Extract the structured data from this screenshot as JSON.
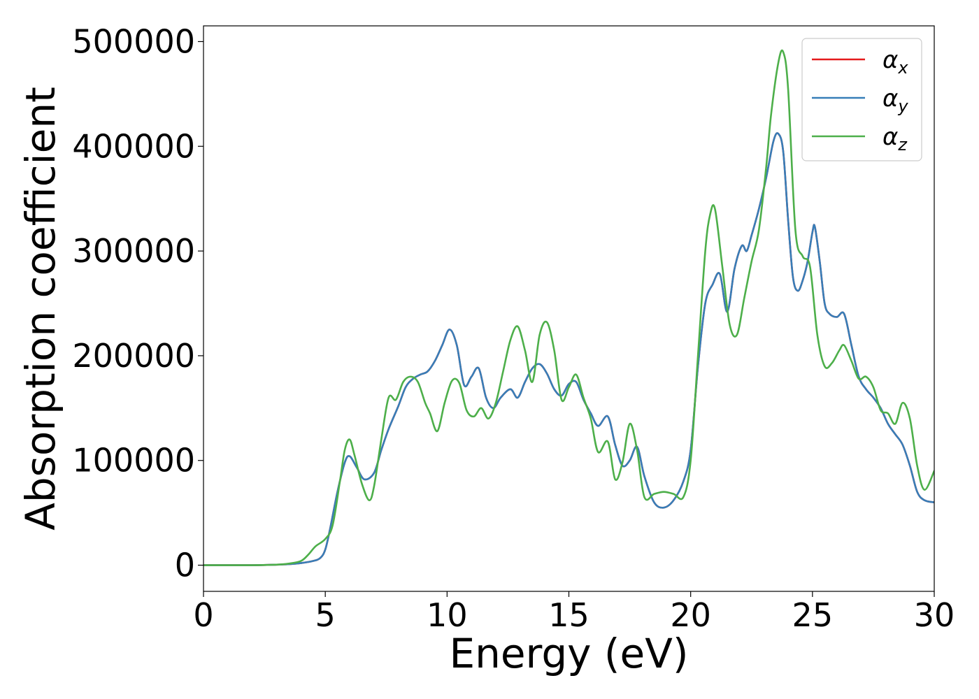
{
  "chart_data": {
    "type": "line",
    "xlabel": "Energy (eV)",
    "ylabel": "Absorption coefficient",
    "xlim": [
      0,
      30
    ],
    "ylim": [
      -25000,
      515000
    ],
    "xticks": [
      0,
      5,
      10,
      15,
      20,
      25,
      30
    ],
    "yticks": [
      0,
      100000,
      200000,
      300000,
      400000,
      500000
    ],
    "grid": false,
    "legend_position": "top-right",
    "series": [
      {
        "name": "α",
        "subscript": "x",
        "color": "#e41a1c",
        "x": [
          0,
          2,
          3,
          3.5,
          4,
          4.5,
          4.8,
          5,
          5.2,
          5.5,
          5.8,
          6,
          6.3,
          6.6,
          7,
          7.3,
          7.6,
          8,
          8.3,
          8.6,
          8.9,
          9.2,
          9.5,
          9.8,
          10.1,
          10.4,
          10.7,
          11,
          11.3,
          11.6,
          11.9,
          12.2,
          12.6,
          12.9,
          13.2,
          13.5,
          13.8,
          14.1,
          14.4,
          14.7,
          15,
          15.3,
          15.6,
          15.9,
          16.2,
          16.6,
          16.9,
          17.2,
          17.5,
          17.8,
          18.1,
          18.5,
          18.9,
          19.3,
          19.7,
          20,
          20.3,
          20.6,
          20.9,
          21.2,
          21.5,
          21.8,
          22.1,
          22.3,
          22.5,
          22.8,
          23.1,
          23.4,
          23.6,
          23.8,
          24,
          24.2,
          24.4,
          24.6,
          24.8,
          25,
          25.1,
          25.3,
          25.5,
          25.7,
          26,
          26.3,
          26.6,
          26.9,
          27.2,
          27.5,
          27.8,
          28.1,
          28.4,
          28.7,
          29,
          29.3,
          29.6,
          30
        ],
        "values": [
          0,
          0,
          500,
          1000,
          2000,
          4000,
          7000,
          15000,
          35000,
          70000,
          98000,
          104000,
          93000,
          82000,
          88000,
          110000,
          130000,
          152000,
          170000,
          178000,
          182000,
          185000,
          195000,
          210000,
          225000,
          210000,
          172000,
          180000,
          188000,
          160000,
          150000,
          160000,
          168000,
          160000,
          175000,
          188000,
          192000,
          183000,
          168000,
          162000,
          173000,
          175000,
          158000,
          145000,
          133000,
          142000,
          115000,
          95000,
          100000,
          113000,
          85000,
          60000,
          55000,
          62000,
          80000,
          110000,
          190000,
          250000,
          268000,
          278000,
          242000,
          283000,
          305000,
          300000,
          315000,
          340000,
          370000,
          405000,
          412000,
          395000,
          330000,
          275000,
          262000,
          272000,
          290000,
          318000,
          323000,
          290000,
          250000,
          240000,
          237000,
          240000,
          210000,
          180000,
          168000,
          160000,
          150000,
          135000,
          125000,
          115000,
          95000,
          70000,
          62000,
          60000
        ]
      },
      {
        "name": "α",
        "subscript": "y",
        "color": "#377eb8",
        "x": [
          0,
          2,
          3,
          3.5,
          4,
          4.5,
          4.8,
          5,
          5.2,
          5.5,
          5.8,
          6,
          6.3,
          6.6,
          7,
          7.3,
          7.6,
          8,
          8.3,
          8.6,
          8.9,
          9.2,
          9.5,
          9.8,
          10.1,
          10.4,
          10.7,
          11,
          11.3,
          11.6,
          11.9,
          12.2,
          12.6,
          12.9,
          13.2,
          13.5,
          13.8,
          14.1,
          14.4,
          14.7,
          15,
          15.3,
          15.6,
          15.9,
          16.2,
          16.6,
          16.9,
          17.2,
          17.5,
          17.8,
          18.1,
          18.5,
          18.9,
          19.3,
          19.7,
          20,
          20.3,
          20.6,
          20.9,
          21.2,
          21.5,
          21.8,
          22.1,
          22.3,
          22.5,
          22.8,
          23.1,
          23.4,
          23.6,
          23.8,
          24,
          24.2,
          24.4,
          24.6,
          24.8,
          25,
          25.1,
          25.3,
          25.5,
          25.7,
          26,
          26.3,
          26.6,
          26.9,
          27.2,
          27.5,
          27.8,
          28.1,
          28.4,
          28.7,
          29,
          29.3,
          29.6,
          30
        ],
        "values": [
          0,
          0,
          500,
          1000,
          2000,
          4000,
          7000,
          15000,
          35000,
          70000,
          98000,
          104000,
          93000,
          82000,
          88000,
          110000,
          130000,
          152000,
          170000,
          178000,
          182000,
          185000,
          195000,
          210000,
          225000,
          210000,
          172000,
          180000,
          188000,
          160000,
          150000,
          160000,
          168000,
          160000,
          175000,
          188000,
          192000,
          183000,
          168000,
          162000,
          173000,
          175000,
          158000,
          145000,
          133000,
          142000,
          115000,
          95000,
          100000,
          113000,
          85000,
          60000,
          55000,
          62000,
          80000,
          110000,
          190000,
          250000,
          268000,
          278000,
          242000,
          283000,
          305000,
          300000,
          315000,
          340000,
          370000,
          405000,
          412000,
          395000,
          330000,
          275000,
          262000,
          272000,
          290000,
          318000,
          323000,
          290000,
          250000,
          240000,
          237000,
          240000,
          210000,
          180000,
          168000,
          160000,
          150000,
          135000,
          125000,
          115000,
          95000,
          70000,
          62000,
          60000
        ]
      },
      {
        "name": "α",
        "subscript": "z",
        "color": "#4daf4a",
        "x": [
          0,
          2,
          3,
          3.5,
          4,
          4.3,
          4.6,
          5,
          5.3,
          5.6,
          5.8,
          6,
          6.2,
          6.5,
          6.8,
          7,
          7.3,
          7.6,
          7.9,
          8.2,
          8.5,
          8.8,
          9.1,
          9.3,
          9.6,
          9.9,
          10.2,
          10.5,
          10.8,
          11.1,
          11.4,
          11.7,
          12,
          12.3,
          12.6,
          12.9,
          13.2,
          13.5,
          13.8,
          14.1,
          14.4,
          14.7,
          15,
          15.3,
          15.6,
          15.9,
          16.2,
          16.6,
          16.9,
          17.2,
          17.5,
          17.8,
          18.1,
          18.5,
          18.9,
          19.3,
          19.7,
          20,
          20.3,
          20.6,
          20.8,
          21,
          21.3,
          21.6,
          21.9,
          22.2,
          22.5,
          22.8,
          23.1,
          23.3,
          23.6,
          23.8,
          24,
          24.3,
          24.6,
          24.9,
          25.2,
          25.5,
          25.8,
          26.1,
          26.3,
          26.6,
          26.9,
          27.2,
          27.5,
          27.8,
          28.1,
          28.4,
          28.7,
          29,
          29.3,
          29.6,
          30
        ],
        "values": [
          0,
          0,
          500,
          1500,
          4000,
          10000,
          18000,
          25000,
          38000,
          80000,
          110000,
          120000,
          105000,
          78000,
          62000,
          75000,
          120000,
          160000,
          158000,
          175000,
          180000,
          175000,
          155000,
          145000,
          128000,
          155000,
          176000,
          174000,
          148000,
          142000,
          150000,
          140000,
          155000,
          185000,
          215000,
          228000,
          205000,
          175000,
          220000,
          232000,
          205000,
          158000,
          170000,
          182000,
          160000,
          140000,
          108000,
          118000,
          82000,
          98000,
          135000,
          110000,
          65000,
          68000,
          70000,
          68000,
          65000,
          100000,
          200000,
          300000,
          335000,
          340000,
          285000,
          230000,
          220000,
          255000,
          290000,
          320000,
          380000,
          430000,
          480000,
          490000,
          455000,
          320000,
          295000,
          285000,
          220000,
          190000,
          193000,
          205000,
          210000,
          195000,
          178000,
          180000,
          170000,
          148000,
          145000,
          135000,
          155000,
          140000,
          95000,
          72000,
          90000
        ]
      }
    ]
  }
}
